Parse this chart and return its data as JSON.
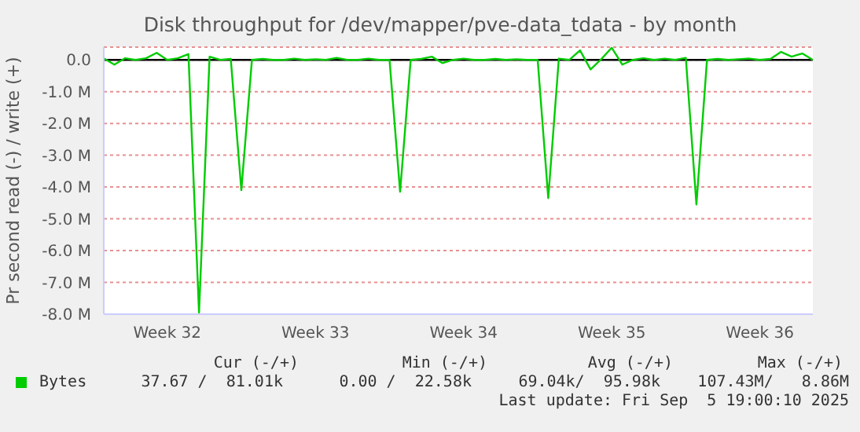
{
  "chart_data": {
    "type": "line",
    "title": "Disk throughput for /dev/mapper/pve-data_tdata - by month",
    "ylabel": "Pr second read (-) / write (+)",
    "categories": [
      null,
      null,
      null,
      null,
      null,
      null,
      "Week 32",
      null,
      null,
      null,
      null,
      null,
      null,
      null,
      null,
      null,
      null,
      null,
      null,
      null,
      "Week 33",
      null,
      null,
      null,
      null,
      null,
      null,
      null,
      null,
      null,
      null,
      null,
      null,
      null,
      "Week 34",
      null,
      null,
      null,
      null,
      null,
      null,
      null,
      null,
      null,
      null,
      null,
      null,
      null,
      "Week 35",
      null,
      null,
      null,
      null,
      null,
      null,
      null,
      null,
      null,
      null,
      null,
      null,
      null,
      "Week 36",
      null,
      null,
      null,
      null,
      null
    ],
    "series": [
      {
        "name": "Bytes",
        "color": "#00cc00",
        "values": [
          0.05,
          -0.15,
          0.05,
          0,
          0.05,
          0.22,
          0,
          0.05,
          0.18,
          -7.95,
          0.1,
          0,
          0.03,
          -4.1,
          0,
          0.03,
          0,
          0,
          0.04,
          0,
          0.02,
          0,
          0.06,
          0,
          0,
          0.04,
          0,
          0,
          -4.15,
          0,
          0.03,
          0.1,
          -0.1,
          0,
          0.04,
          0,
          0,
          0.03,
          0,
          0.02,
          0,
          0,
          -4.35,
          0.04,
          0,
          0.3,
          -0.3,
          0.02,
          0.38,
          -0.15,
          0,
          0.05,
          0,
          0.04,
          0,
          0.06,
          -4.55,
          0,
          0.03,
          0,
          0.02,
          0.04,
          0,
          0.03,
          0.25,
          0.1,
          0.2,
          0
        ]
      }
    ],
    "ylim": [
      -8,
      0.4
    ],
    "yticks": [
      {
        "value": -8,
        "label": "-8.0 M"
      },
      {
        "value": -7,
        "label": "-7.0 M"
      },
      {
        "value": -6,
        "label": "-6.0 M"
      },
      {
        "value": -5,
        "label": "-5.0 M"
      },
      {
        "value": -4,
        "label": "-4.0 M"
      },
      {
        "value": -3,
        "label": "-3.0 M"
      },
      {
        "value": -2,
        "label": "-2.0 M"
      },
      {
        "value": -1,
        "label": "-1.0 M"
      },
      {
        "value": 0,
        "label": "0.0"
      }
    ],
    "ref_lines": [
      {
        "axis": "y",
        "value": 0,
        "color": "#000000"
      }
    ],
    "grid": true,
    "legend": "bottom",
    "marker": "none",
    "line_style": "solid",
    "annotations": [
      "Cur (-/+)",
      "Min (-/+)",
      "Avg (-/+)",
      "Max (-/+)",
      "37.67 /  81.01k",
      "0.00 /  22.58k",
      "69.04k/  95.98k",
      "107.43M/   8.86M",
      "Last update: Fri Sep  5 19:00:10 2025"
    ]
  }
}
